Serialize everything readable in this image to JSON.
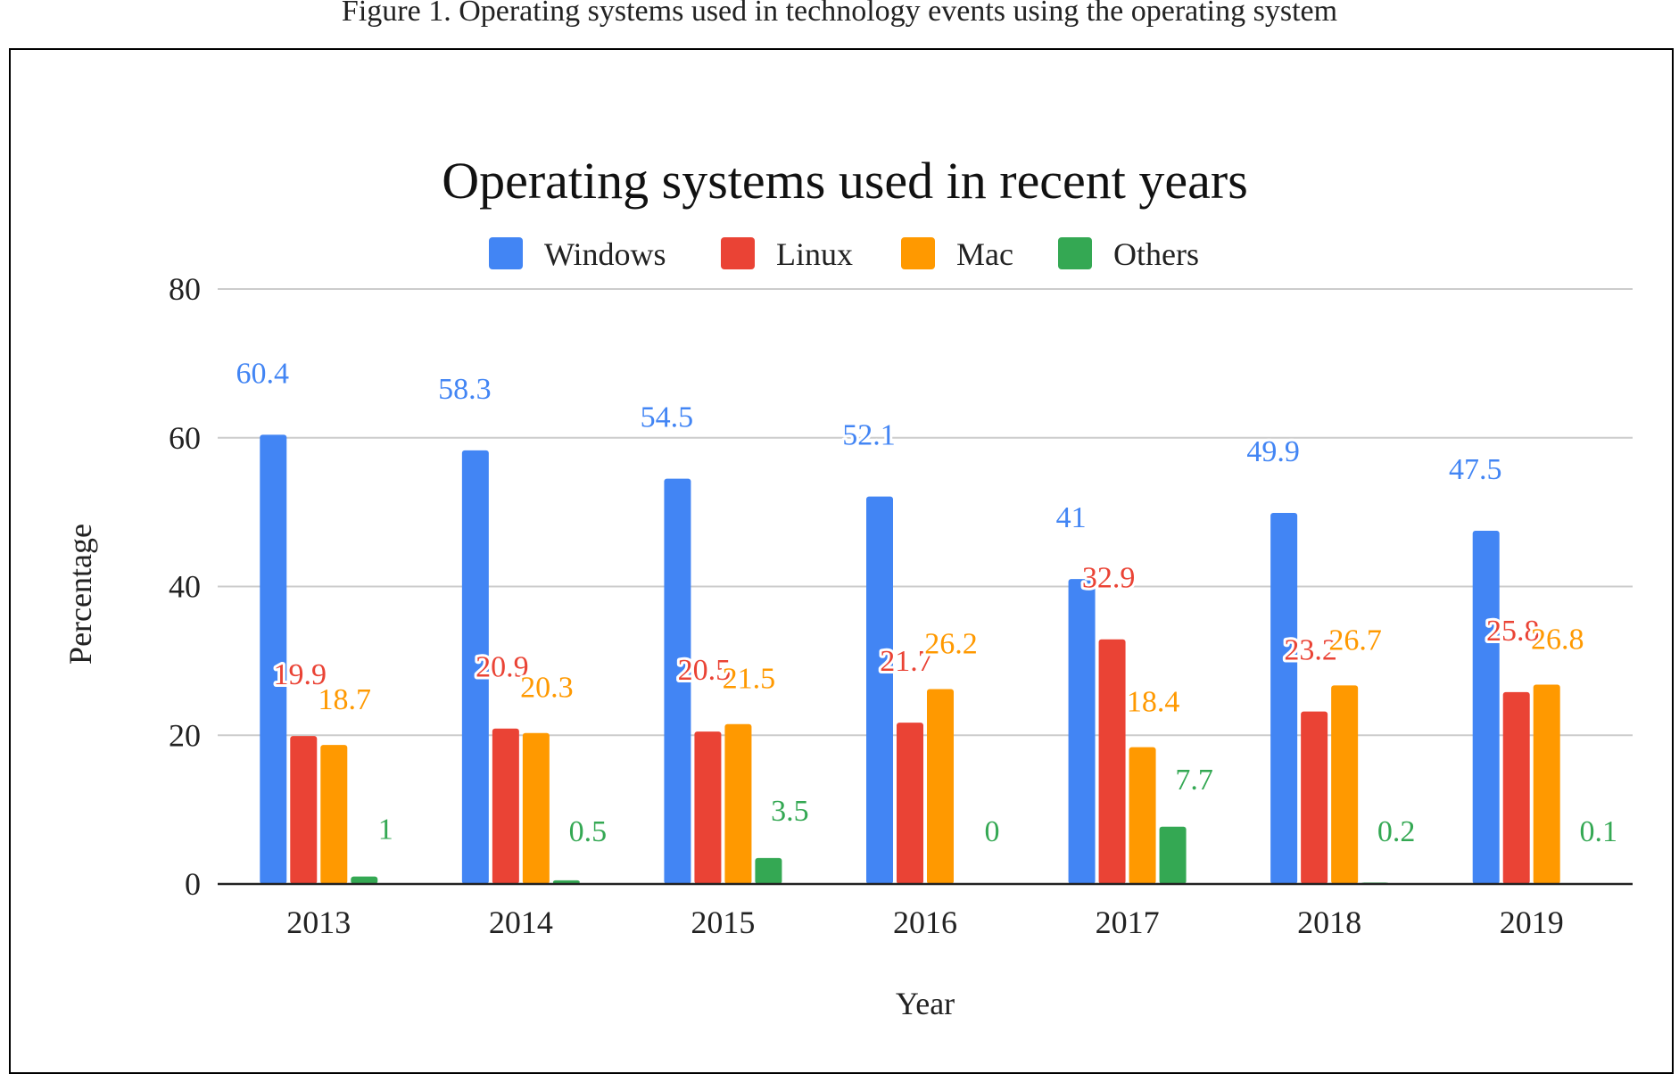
{
  "page": {
    "caption": "Figure 1. Operating systems used in technology events using the operating system"
  },
  "colors": {
    "Windows": "#4285f4",
    "Linux": "#ea4335",
    "Mac": "#ff9900",
    "Others": "#34a853",
    "grid": "#cccccc",
    "axis": "#222222"
  },
  "chart_data": {
    "type": "bar",
    "title": "Operating systems used in recent years",
    "xlabel": "Year",
    "ylabel": "Percentage",
    "ylim": [
      0,
      80
    ],
    "yticks": [
      0,
      20,
      40,
      60,
      80
    ],
    "grid": true,
    "legend_position": "top",
    "categories": [
      "2013",
      "2014",
      "2015",
      "2016",
      "2017",
      "2018",
      "2019"
    ],
    "series": [
      {
        "name": "Windows",
        "values": [
          60.4,
          58.3,
          54.5,
          52.1,
          41,
          49.9,
          47.5
        ]
      },
      {
        "name": "Linux",
        "values": [
          19.9,
          20.9,
          20.5,
          21.7,
          32.9,
          23.2,
          25.8
        ]
      },
      {
        "name": "Mac",
        "values": [
          18.7,
          20.3,
          21.5,
          26.2,
          18.4,
          26.7,
          26.8
        ]
      },
      {
        "name": "Others",
        "values": [
          1,
          0.5,
          3.5,
          0,
          7.7,
          0.2,
          0.1
        ]
      }
    ]
  }
}
